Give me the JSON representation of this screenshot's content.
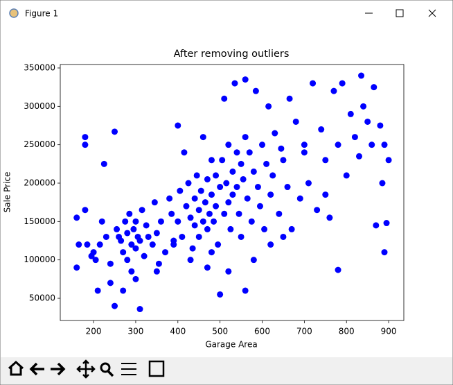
{
  "window": {
    "title": "Figure 1"
  },
  "chart_data": {
    "type": "scatter",
    "title": "After removing outliers",
    "x_label": "Garage Area",
    "y_label": "Sale Price",
    "color": "#0000ff",
    "x": [
      160,
      160,
      165,
      180,
      180,
      180,
      185,
      195,
      200,
      205,
      210,
      215,
      220,
      225,
      230,
      240,
      250,
      250,
      255,
      260,
      265,
      270,
      275,
      280,
      280,
      285,
      290,
      290,
      295,
      300,
      300,
      305,
      310,
      310,
      315,
      320,
      325,
      330,
      340,
      345,
      350,
      355,
      360,
      370,
      380,
      385,
      390,
      400,
      400,
      405,
      410,
      415,
      420,
      425,
      430,
      435,
      440,
      440,
      445,
      450,
      450,
      455,
      460,
      460,
      465,
      470,
      470,
      475,
      480,
      480,
      485,
      490,
      490,
      495,
      500,
      500,
      505,
      510,
      510,
      515,
      520,
      520,
      525,
      530,
      530,
      535,
      540,
      540,
      545,
      550,
      550,
      555,
      560,
      560,
      565,
      570,
      575,
      580,
      585,
      590,
      595,
      600,
      605,
      610,
      615,
      620,
      625,
      630,
      640,
      645,
      650,
      660,
      665,
      670,
      680,
      690,
      700,
      710,
      720,
      730,
      740,
      750,
      760,
      770,
      780,
      780,
      790,
      800,
      810,
      820,
      830,
      835,
      840,
      850,
      860,
      865,
      870,
      880,
      885,
      890,
      890,
      895,
      900,
      620,
      700,
      750,
      580,
      520,
      470,
      430,
      390,
      350,
      300,
      270,
      240,
      560,
      480,
      650
    ],
    "y": [
      90000,
      155000,
      120000,
      260000,
      250000,
      165000,
      120000,
      105000,
      110000,
      100000,
      60000,
      120000,
      150000,
      225000,
      130000,
      95000,
      40000,
      267000,
      140000,
      130000,
      125000,
      110000,
      150000,
      135000,
      100000,
      160000,
      120000,
      85000,
      140000,
      150000,
      115000,
      130000,
      36000,
      125000,
      165000,
      105000,
      145000,
      130000,
      120000,
      175000,
      135000,
      95000,
      150000,
      110000,
      180000,
      160000,
      120000,
      275000,
      150000,
      190000,
      130000,
      240000,
      170000,
      200000,
      155000,
      115000,
      180000,
      145000,
      210000,
      165000,
      130000,
      190000,
      150000,
      260000,
      175000,
      140000,
      205000,
      160000,
      185000,
      230000,
      150000,
      210000,
      170000,
      120000,
      195000,
      55000,
      230000,
      160000,
      310000,
      200000,
      175000,
      250000,
      140000,
      215000,
      185000,
      330000,
      195000,
      240000,
      160000,
      225000,
      130000,
      205000,
      260000,
      335000,
      180000,
      240000,
      150000,
      215000,
      320000,
      195000,
      170000,
      250000,
      140000,
      225000,
      300000,
      185000,
      210000,
      265000,
      160000,
      245000,
      230000,
      195000,
      310000,
      140000,
      280000,
      180000,
      250000,
      200000,
      330000,
      165000,
      270000,
      230000,
      155000,
      320000,
      87000,
      250000,
      330000,
      210000,
      290000,
      260000,
      235000,
      340000,
      300000,
      280000,
      250000,
      325000,
      145000,
      275000,
      200000,
      110000,
      250000,
      148000,
      230000,
      120000,
      240000,
      185000,
      100000,
      85000,
      90000,
      100000,
      125000,
      85000,
      75000,
      60000,
      70000,
      60000,
      110000,
      130000
    ],
    "xlim": [
      121,
      936
    ],
    "ylim": [
      21100,
      354500
    ],
    "xticks": [
      200,
      300,
      400,
      500,
      600,
      700,
      800,
      900
    ],
    "yticks": [
      50000,
      100000,
      150000,
      200000,
      250000,
      300000,
      350000
    ],
    "grid": false
  }
}
